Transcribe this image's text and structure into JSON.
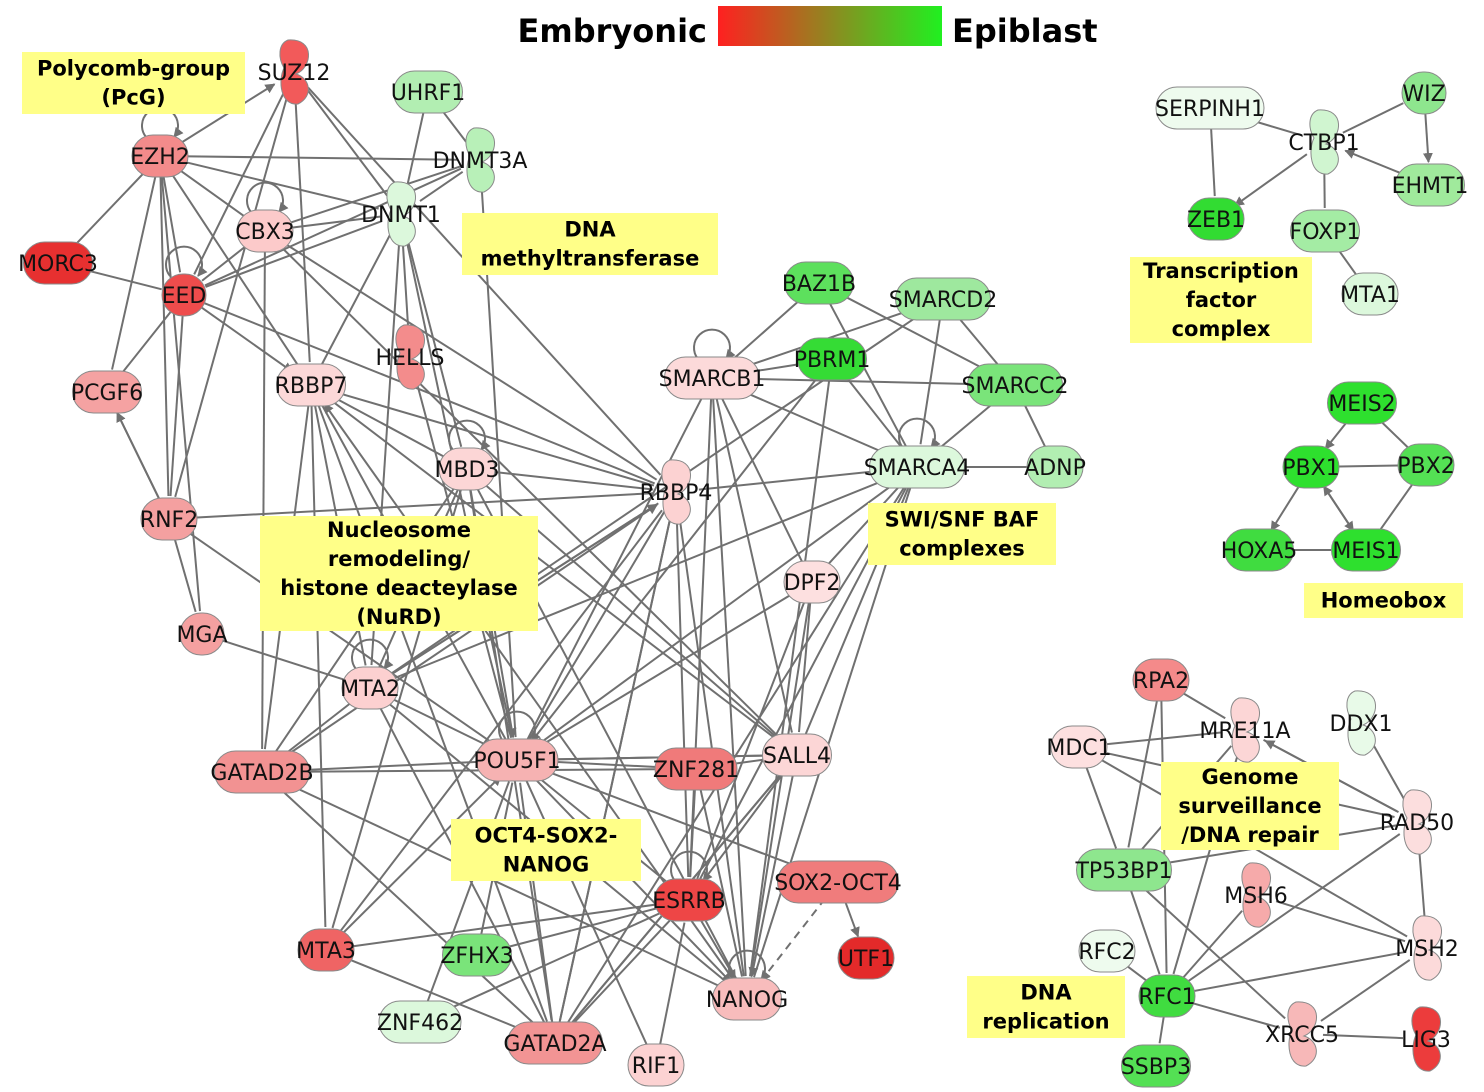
{
  "legend": {
    "left_label": "Embryonic",
    "right_label": "Epiblast",
    "gradient_colors": [
      "#ff2020",
      "#20f020"
    ]
  },
  "groups": [
    {
      "id": "pcg",
      "lines": [
        "Polycomb-group",
        "(PcG)"
      ]
    },
    {
      "id": "dnmt",
      "lines": [
        "DNA",
        "methyltransferase"
      ]
    },
    {
      "id": "nurd",
      "lines": [
        "Nucleosome",
        "remodeling/",
        "histone deacteylase",
        "(NuRD)"
      ]
    },
    {
      "id": "swisnf",
      "lines": [
        "SWI/SNF BAF",
        "complexes"
      ]
    },
    {
      "id": "osn",
      "lines": [
        "OCT4-SOX2-",
        "NANOG"
      ]
    },
    {
      "id": "tfc",
      "lines": [
        "Transcription",
        "factor",
        "complex"
      ]
    },
    {
      "id": "homeobox",
      "lines": [
        "Homeobox"
      ]
    },
    {
      "id": "genome",
      "lines": [
        "Genome",
        "surveillance",
        "/DNA repair"
      ]
    },
    {
      "id": "dnarep",
      "lines": [
        "DNA",
        "replication"
      ]
    }
  ],
  "nodes": [
    {
      "id": "SUZ12",
      "label": "SUZ12",
      "shape": "crescent",
      "color": "#f25a5a"
    },
    {
      "id": "UHRF1",
      "label": "UHRF1",
      "shape": "circle",
      "color": "#b2eeb2"
    },
    {
      "id": "DNMT3A",
      "label": "DNMT3A",
      "shape": "crescent",
      "color": "#b8f0b8"
    },
    {
      "id": "EZH2",
      "label": "EZH2",
      "shape": "circle",
      "color": "#f38b8b"
    },
    {
      "id": "DNMT1",
      "label": "DNMT1",
      "shape": "crescent",
      "color": "#dcf8dc"
    },
    {
      "id": "CBX3",
      "label": "CBX3",
      "shape": "circle",
      "color": "#fccaca"
    },
    {
      "id": "MORC3",
      "label": "MORC3",
      "shape": "circle",
      "color": "#e73030"
    },
    {
      "id": "EED",
      "label": "EED",
      "shape": "circle",
      "color": "#ee4c4c"
    },
    {
      "id": "PCGF6",
      "label": "PCGF6",
      "shape": "circle",
      "color": "#f5a2a2"
    },
    {
      "id": "RBBP7",
      "label": "RBBP7",
      "shape": "circle",
      "color": "#fcd8d8"
    },
    {
      "id": "HELLS",
      "label": "HELLS",
      "shape": "crescent",
      "color": "#f38c8c"
    },
    {
      "id": "MBD3",
      "label": "MBD3",
      "shape": "circle",
      "color": "#fcd6d6"
    },
    {
      "id": "RBBP4",
      "label": "RBBP4",
      "shape": "crescent",
      "color": "#fcd2d2"
    },
    {
      "id": "RNF2",
      "label": "RNF2",
      "shape": "circle",
      "color": "#f4a0a0"
    },
    {
      "id": "MGA",
      "label": "MGA",
      "shape": "circle",
      "color": "#f4a0a0"
    },
    {
      "id": "MTA2",
      "label": "MTA2",
      "shape": "circle",
      "color": "#fcd0d0"
    },
    {
      "id": "GATAD2B",
      "label": "GATAD2B",
      "shape": "circle",
      "color": "#f29292"
    },
    {
      "id": "POU5F1",
      "label": "POU5F1",
      "shape": "circle",
      "color": "#f6b2b2"
    },
    {
      "id": "ZNF281",
      "label": "ZNF281",
      "shape": "circle",
      "color": "#f07a7a"
    },
    {
      "id": "SALL4",
      "label": "SALL4",
      "shape": "circle",
      "color": "#fcd6d6"
    },
    {
      "id": "DPF2",
      "label": "DPF2",
      "shape": "circle",
      "color": "#fde0e0"
    },
    {
      "id": "SMARCB1",
      "label": "SMARCB1",
      "shape": "circle",
      "color": "#fcdada"
    },
    {
      "id": "BAZ1B",
      "label": "BAZ1B",
      "shape": "circle",
      "color": "#5de05d"
    },
    {
      "id": "SMARCD2",
      "label": "SMARCD2",
      "shape": "circle",
      "color": "#9ee89e"
    },
    {
      "id": "PBRM1",
      "label": "PBRM1",
      "shape": "circle",
      "color": "#35dc35"
    },
    {
      "id": "SMARCC2",
      "label": "SMARCC2",
      "shape": "circle",
      "color": "#7ae47a"
    },
    {
      "id": "SMARCA4",
      "label": "SMARCA4",
      "shape": "circle",
      "color": "#dcf8dc"
    },
    {
      "id": "ADNP",
      "label": "ADNP",
      "shape": "circle",
      "color": "#b2eeb2"
    },
    {
      "id": "ESRRB",
      "label": "ESRRB",
      "shape": "circle",
      "color": "#ee4646"
    },
    {
      "id": "SOX2-OCT4",
      "label": "SOX2-OCT4",
      "shape": "circle",
      "color": "#f07c7c"
    },
    {
      "id": "UTF1",
      "label": "UTF1",
      "shape": "circle",
      "color": "#e32a2a"
    },
    {
      "id": "MTA3",
      "label": "MTA3",
      "shape": "circle",
      "color": "#ef6464"
    },
    {
      "id": "ZFHX3",
      "label": "ZFHX3",
      "shape": "circle",
      "color": "#7ae47a"
    },
    {
      "id": "NANOG",
      "label": "NANOG",
      "shape": "circle",
      "color": "#f8bcbc"
    },
    {
      "id": "ZNF462",
      "label": "ZNF462",
      "shape": "circle",
      "color": "#dcf8dc"
    },
    {
      "id": "GATAD2A",
      "label": "GATAD2A",
      "shape": "circle",
      "color": "#f29494"
    },
    {
      "id": "RIF1",
      "label": "RIF1",
      "shape": "circle",
      "color": "#fcd2d2"
    },
    {
      "id": "SERPINH1",
      "label": "SERPINH1",
      "shape": "circle",
      "color": "#eefbee"
    },
    {
      "id": "CTBP1",
      "label": "CTBP1",
      "shape": "crescent",
      "color": "#d0f5d0"
    },
    {
      "id": "WIZ",
      "label": "WIZ",
      "shape": "circle",
      "color": "#8ee68e"
    },
    {
      "id": "ZEB1",
      "label": "ZEB1",
      "shape": "circle",
      "color": "#32dc32"
    },
    {
      "id": "FOXP1",
      "label": "FOXP1",
      "shape": "circle",
      "color": "#a4ecA4"
    },
    {
      "id": "EHMT1",
      "label": "EHMT1",
      "shape": "circle",
      "color": "#a0ea9c"
    },
    {
      "id": "MTA1",
      "label": "MTA1",
      "shape": "circle",
      "color": "#dcf8dc"
    },
    {
      "id": "MEIS2",
      "label": "MEIS2",
      "shape": "circle",
      "color": "#2ee02e"
    },
    {
      "id": "PBX1",
      "label": "PBX1",
      "shape": "circle",
      "color": "#2ee02e"
    },
    {
      "id": "PBX2",
      "label": "PBX2",
      "shape": "circle",
      "color": "#54e054"
    },
    {
      "id": "HOXA5",
      "label": "HOXA5",
      "shape": "circle",
      "color": "#40dc40"
    },
    {
      "id": "MEIS1",
      "label": "MEIS1",
      "shape": "circle",
      "color": "#2ee02e"
    },
    {
      "id": "RPA2",
      "label": "RPA2",
      "shape": "circle",
      "color": "#f48a8a"
    },
    {
      "id": "MRE11A",
      "label": "MRE11A",
      "shape": "crescent",
      "color": "#fcd6d6"
    },
    {
      "id": "DDX1",
      "label": "DDX1",
      "shape": "crescent",
      "color": "#e8fae8"
    },
    {
      "id": "MDC1",
      "label": "MDC1",
      "shape": "circle",
      "color": "#fde0e0"
    },
    {
      "id": "RAD50",
      "label": "RAD50",
      "shape": "crescent",
      "color": "#fcdede"
    },
    {
      "id": "TP53BP1",
      "label": "TP53BP1",
      "shape": "circle",
      "color": "#8ee68e"
    },
    {
      "id": "MSH6",
      "label": "MSH6",
      "shape": "crescent",
      "color": "#f6aaaa"
    },
    {
      "id": "RFC2",
      "label": "RFC2",
      "shape": "circle",
      "color": "#eefbee"
    },
    {
      "id": "MSH2",
      "label": "MSH2",
      "shape": "crescent",
      "color": "#fcdada"
    },
    {
      "id": "RFC1",
      "label": "RFC1",
      "shape": "circle",
      "color": "#40dc40"
    },
    {
      "id": "XRCC5",
      "label": "XRCC5",
      "shape": "crescent",
      "color": "#f7b8b8"
    },
    {
      "id": "LIG3",
      "label": "LIG3",
      "shape": "crescent",
      "color": "#ec3c3c"
    },
    {
      "id": "SSBP3",
      "label": "SSBP3",
      "shape": "circle",
      "color": "#54e054"
    }
  ],
  "edges": [
    [
      "EZH2",
      "SUZ12",
      "arrow"
    ],
    [
      "EZH2",
      "EED",
      "line"
    ],
    [
      "EZH2",
      "CBX3",
      "line"
    ],
    [
      "EZH2",
      "DNMT3A",
      "line"
    ],
    [
      "EZH2",
      "DNMT1",
      "line"
    ],
    [
      "EZH2",
      "PCGF6",
      "line"
    ],
    [
      "EZH2",
      "RNF2",
      "line"
    ],
    [
      "EZH2",
      "MORC3",
      "line"
    ],
    [
      "EZH2",
      "RBBP7",
      "line"
    ],
    [
      "EZH2",
      "MGA",
      "line"
    ],
    [
      "SUZ12",
      "EED",
      "line"
    ],
    [
      "SUZ12",
      "RNF2",
      "line"
    ],
    [
      "SUZ12",
      "DNMT1",
      "line"
    ],
    [
      "SUZ12",
      "RBBP4",
      "line"
    ],
    [
      "SUZ12",
      "RBBP7",
      "line"
    ],
    [
      "UHRF1",
      "DNMT1",
      "line"
    ],
    [
      "UHRF1",
      "DNMT3A",
      "line"
    ],
    [
      "DNMT3A",
      "DNMT1",
      "line"
    ],
    [
      "DNMT3A",
      "CBX3",
      "line"
    ],
    [
      "DNMT3A",
      "EED",
      "line"
    ],
    [
      "DNMT3A",
      "POU5F1",
      "line"
    ],
    [
      "DNMT1",
      "CBX3",
      "line"
    ],
    [
      "DNMT1",
      "EED",
      "line"
    ],
    [
      "DNMT1",
      "RBBP7",
      "line"
    ],
    [
      "DNMT1",
      "HELLS",
      "line"
    ],
    [
      "DNMT1",
      "MBD3",
      "line"
    ],
    [
      "DNMT1",
      "POU5F1",
      "line"
    ],
    [
      "DNMT1",
      "MTA2",
      "line"
    ],
    [
      "CBX3",
      "RBBP4",
      "line"
    ],
    [
      "CBX3",
      "GATAD2B",
      "line"
    ],
    [
      "CBX3",
      "EED",
      "line"
    ],
    [
      "CBX3",
      "SALL4",
      "line"
    ],
    [
      "MORC3",
      "EED",
      "line"
    ],
    [
      "EED",
      "RBBP7",
      "arrow"
    ],
    [
      "EED",
      "RBBP4",
      "line"
    ],
    [
      "EED",
      "PCGF6",
      "line"
    ],
    [
      "EED",
      "RNF2",
      "line"
    ],
    [
      "PCGF6",
      "RNF2",
      "line"
    ],
    [
      "RNF2",
      "MGA",
      "line"
    ],
    [
      "RNF2",
      "RBBP4",
      "line"
    ],
    [
      "RNF2",
      "PCGF6",
      "arrow"
    ],
    [
      "RNF2",
      "POU5F1",
      "line"
    ],
    [
      "MGA",
      "MTA2",
      "line"
    ],
    [
      "RBBP7",
      "MBD3",
      "line"
    ],
    [
      "RBBP7",
      "RBBP4",
      "line"
    ],
    [
      "RBBP7",
      "MTA2",
      "line"
    ],
    [
      "RBBP7",
      "GATAD2B",
      "line"
    ],
    [
      "RBBP7",
      "MTA3",
      "line"
    ],
    [
      "RBBP7",
      "GATAD2A",
      "line"
    ],
    [
      "RBBP7",
      "POU5F1",
      "line"
    ],
    [
      "RBBP7",
      "SALL4",
      "line"
    ],
    [
      "NANOG",
      "RBBP7",
      "arrow"
    ],
    [
      "HELLS",
      "POU5F1",
      "line"
    ],
    [
      "MBD3",
      "RBBP4",
      "line"
    ],
    [
      "MBD3",
      "MTA2",
      "line"
    ],
    [
      "MBD3",
      "GATAD2B",
      "line"
    ],
    [
      "MBD3",
      "POU5F1",
      "arrow"
    ],
    [
      "MBD3",
      "NANOG",
      "line"
    ],
    [
      "MBD3",
      "SALL4",
      "line"
    ],
    [
      "MBD3",
      "GATAD2A",
      "line"
    ],
    [
      "MBD3",
      "MTA3",
      "line"
    ],
    [
      "MTA2",
      "RBBP4",
      "arrow"
    ],
    [
      "MTA2",
      "POU5F1",
      "line"
    ],
    [
      "MTA2",
      "GATAD2B",
      "line"
    ],
    [
      "MTA2",
      "GATAD2A",
      "line"
    ],
    [
      "MTA2",
      "NANOG",
      "line"
    ],
    [
      "MTA2",
      "SMARCA4",
      "line"
    ],
    [
      "GATAD2B",
      "RBBP4",
      "arrow"
    ],
    [
      "GATAD2B",
      "POU5F1",
      "line"
    ],
    [
      "GATAD2B",
      "GATAD2A",
      "line"
    ],
    [
      "GATAD2B",
      "NANOG",
      "line"
    ],
    [
      "GATAD2B",
      "ZNF281",
      "line"
    ],
    [
      "MTA3",
      "RBBP4",
      "line"
    ],
    [
      "MTA3",
      "POU5F1",
      "arrow"
    ],
    [
      "MTA3",
      "GATAD2A",
      "line"
    ],
    [
      "MTA3",
      "ESRRB",
      "line"
    ],
    [
      "GATAD2A",
      "POU5F1",
      "line"
    ],
    [
      "GATAD2A",
      "RBBP4",
      "line"
    ],
    [
      "GATAD2A",
      "SALL4",
      "line"
    ],
    [
      "ZNF462",
      "POU5F1",
      "line"
    ],
    [
      "ZNF462",
      "ESRRB",
      "line"
    ],
    [
      "ZFHX3",
      "POU5F1",
      "line"
    ],
    [
      "RIF1",
      "POU5F1",
      "line"
    ],
    [
      "RIF1",
      "ESRRB",
      "line"
    ],
    [
      "POU5F1",
      "NANOG",
      "arrow"
    ],
    [
      "POU5F1",
      "SALL4",
      "line"
    ],
    [
      "POU5F1",
      "ZNF281",
      "line"
    ],
    [
      "POU5F1",
      "ESRRB",
      "line"
    ],
    [
      "POU5F1",
      "SOX2-OCT4",
      "arrow"
    ],
    [
      "SALL4",
      "POU5F1",
      "arrow"
    ],
    [
      "SALL4",
      "NANOG",
      "arrow"
    ],
    [
      "SALL4",
      "ZNF281",
      "line"
    ],
    [
      "SALL4",
      "ESRRB",
      "line"
    ],
    [
      "SALL4",
      "GATAD2A",
      "line"
    ],
    [
      "ZNF281",
      "NANOG",
      "line"
    ],
    [
      "ZNF281",
      "ESRRB",
      "line"
    ],
    [
      "ESRRB",
      "NANOG",
      "arrow"
    ],
    [
      "ESRRB",
      "GATAD2A",
      "line"
    ],
    [
      "ESRRB",
      "ZFHX3",
      "line"
    ],
    [
      "SOX2-OCT4",
      "UTF1",
      "arrow"
    ],
    [
      "SOX2-OCT4",
      "NANOG",
      "dashed"
    ],
    [
      "DPF2",
      "POU5F1",
      "line"
    ],
    [
      "DPF2",
      "NANOG",
      "line"
    ],
    [
      "DPF2",
      "ESRRB",
      "line"
    ],
    [
      "DPF2",
      "SALL4",
      "line"
    ],
    [
      "SMARCB1",
      "POU5F1",
      "line"
    ],
    [
      "SMARCB1",
      "SMARCA4",
      "arrow"
    ],
    [
      "SMARCB1",
      "SALL4",
      "line"
    ],
    [
      "SMARCB1",
      "NANOG",
      "line"
    ],
    [
      "SMARCB1",
      "PBRM1",
      "line"
    ],
    [
      "SMARCB1",
      "SMARCC2",
      "line"
    ],
    [
      "SMARCB1",
      "SMARCD2",
      "line"
    ],
    [
      "SMARCB1",
      "BAZ1B",
      "line"
    ],
    [
      "SMARCB1",
      "DPF2",
      "line"
    ],
    [
      "SMARCB1",
      "ESRRB",
      "line"
    ],
    [
      "BAZ1B",
      "SMARCA4",
      "line"
    ],
    [
      "BAZ1B",
      "SMARCC2",
      "line"
    ],
    [
      "SMARCD2",
      "SMARCA4",
      "line"
    ],
    [
      "SMARCD2",
      "SMARCC2",
      "line"
    ],
    [
      "PBRM1",
      "SMARCA4",
      "line"
    ],
    [
      "PBRM1",
      "NANOG",
      "line"
    ],
    [
      "PBRM1",
      "POU5F1",
      "line"
    ],
    [
      "SMARCC2",
      "SMARCA4",
      "line"
    ],
    [
      "SMARCC2",
      "ADNP",
      "line"
    ],
    [
      "SMARCA4",
      "ADNP",
      "line"
    ],
    [
      "SMARCA4",
      "RBBP4",
      "line"
    ],
    [
      "SMARCA4",
      "POU5F1",
      "arrow"
    ],
    [
      "SMARCA4",
      "NANOG",
      "line"
    ],
    [
      "SMARCA4",
      "SALL4",
      "line"
    ],
    [
      "SMARCA4",
      "ESRRB",
      "line"
    ],
    [
      "SMARCA4",
      "DPF2",
      "line"
    ],
    [
      "SMARCA4",
      "GATAD2A",
      "line"
    ],
    [
      "SMARCD2",
      "MTA2",
      "line"
    ],
    [
      "RBBP4",
      "NANOG",
      "line"
    ],
    [
      "RBBP4",
      "MTA2",
      "line"
    ],
    [
      "RBBP4",
      "POU5F1",
      "line"
    ],
    [
      "RBBP4",
      "GATAD2A",
      "line"
    ],
    [
      "RBBP4",
      "ESRRB",
      "line"
    ],
    [
      "SERPINH1",
      "CTBP1",
      "line"
    ],
    [
      "SERPINH1",
      "ZEB1",
      "line"
    ],
    [
      "CTBP1",
      "ZEB1",
      "arrow"
    ],
    [
      "CTBP1",
      "FOXP1",
      "line"
    ],
    [
      "CTBP1",
      "WIZ",
      "line"
    ],
    [
      "EHMT1",
      "CTBP1",
      "arrow"
    ],
    [
      "WIZ",
      "EHMT1",
      "arrow"
    ],
    [
      "FOXP1",
      "MTA1",
      "line"
    ],
    [
      "MEIS2",
      "PBX1",
      "arrow"
    ],
    [
      "MEIS2",
      "PBX2",
      "line"
    ],
    [
      "PBX1",
      "PBX2",
      "line"
    ],
    [
      "PBX1",
      "HOXA5",
      "arrow"
    ],
    [
      "PBX1",
      "MEIS1",
      "arrow"
    ],
    [
      "MEIS1",
      "PBX1",
      "arrow"
    ],
    [
      "PBX2",
      "MEIS1",
      "line"
    ],
    [
      "HOXA5",
      "MEIS1",
      "line"
    ],
    [
      "RPA2",
      "MRE11A",
      "line"
    ],
    [
      "RPA2",
      "TP53BP1",
      "line"
    ],
    [
      "RPA2",
      "RFC1",
      "line"
    ],
    [
      "MDC1",
      "MRE11A",
      "line"
    ],
    [
      "MDC1",
      "TP53BP1",
      "line"
    ],
    [
      "MDC1",
      "RAD50",
      "line"
    ],
    [
      "MRE11A",
      "RAD50",
      "line"
    ],
    [
      "MRE11A",
      "TP53BP1",
      "line"
    ],
    [
      "MRE11A",
      "RFC1",
      "line"
    ],
    [
      "RAD50",
      "MRE11A",
      "arrow"
    ],
    [
      "DDX1",
      "RAD50",
      "line"
    ],
    [
      "RAD50",
      "MSH2",
      "line"
    ],
    [
      "RAD50",
      "TP53BP1",
      "line"
    ],
    [
      "RAD50",
      "RFC1",
      "line"
    ],
    [
      "MSH6",
      "MSH2",
      "line"
    ],
    [
      "MSH6",
      "RFC1",
      "line"
    ],
    [
      "MSH2",
      "RFC1",
      "line"
    ],
    [
      "MSH2",
      "XRCC5",
      "line"
    ],
    [
      "RFC2",
      "RFC1",
      "line"
    ],
    [
      "RFC1",
      "SSBP3",
      "line"
    ],
    [
      "RFC1",
      "XRCC5",
      "line"
    ],
    [
      "XRCC5",
      "LIG3",
      "line"
    ],
    [
      "TP53BP1",
      "XRCC5",
      "line"
    ],
    [
      "TP53BP1",
      "RFC1",
      "line"
    ],
    [
      "MDC1",
      "MSH2",
      "line"
    ]
  ],
  "self_loops": [
    "EZH2",
    "CBX3",
    "EED",
    "MBD3",
    "SMARCB1",
    "SMARCA4",
    "MTA2",
    "POU5F1",
    "ESRRB",
    "NANOG"
  ]
}
